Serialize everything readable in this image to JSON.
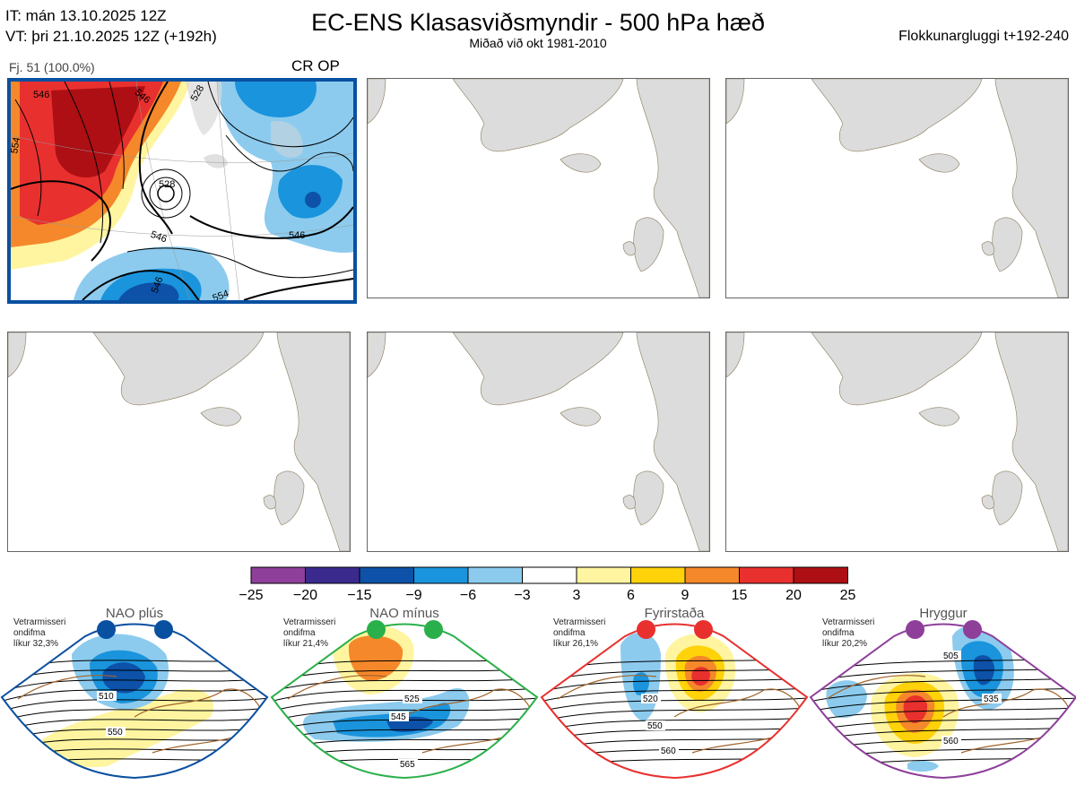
{
  "header": {
    "it_line": "IT: mán 13.10.2025 12Z",
    "vt_line": "VT: þri 21.10.2025 12Z  (+192h)",
    "title": "EC-ENS Klasasviðsmyndir - 500 hPa hæð",
    "subtitle": "Miðað við okt 1981-2010",
    "window_label": "Flokkunargluggi t+192-240"
  },
  "cluster": {
    "label": "Fj. 51 (100.0%)",
    "regime_tag": "CR OP",
    "border_color": "#0a50a0",
    "contour_labels": [
      "546",
      "554",
      "546",
      "528",
      "528",
      "546",
      "546",
      "546",
      "554"
    ]
  },
  "chart_data": {
    "type": "heatmap",
    "title": "EC-ENS Klasasviðsmyndir - 500 hPa hæð",
    "colorbar": {
      "ticks": [
        "−25",
        "−20",
        "−15",
        "−9",
        "−6",
        "−3",
        "3",
        "6",
        "9",
        "15",
        "20",
        "25"
      ],
      "colors": [
        "#8e3f9a",
        "#3b2a8e",
        "#0d51a8",
        "#1a94dc",
        "#8ccbee",
        "#ffffff",
        "#fff5a0",
        "#ffd20a",
        "#f5882a",
        "#e8302e",
        "#ad0f14"
      ]
    },
    "panels": 6,
    "filled_panels": 1
  },
  "regimes": [
    {
      "name": "NAO plús",
      "text": [
        "Vetrarmisseri",
        "ondifma",
        "líkur 32,3%"
      ],
      "color": "#0a50a0",
      "contours": [
        "510",
        "550"
      ]
    },
    {
      "name": "NAO mínus",
      "text": [
        "Vetrarmisseri",
        "ondifma",
        "líkur 21,4%"
      ],
      "color": "#2ab04a",
      "contours": [
        "525",
        "545",
        "565"
      ]
    },
    {
      "name": "Fyrirstaða",
      "text": [
        "Vetrarmisseri",
        "ondifma",
        "líkur 26,1%"
      ],
      "color": "#e8302e",
      "contours": [
        "520",
        "550",
        "560"
      ]
    },
    {
      "name": "Hryggur",
      "text": [
        "Vetrarmisseri",
        "ondifma",
        "líkur 20,2%"
      ],
      "color": "#8e3f9a",
      "contours": [
        "505",
        "535",
        "560"
      ]
    }
  ]
}
